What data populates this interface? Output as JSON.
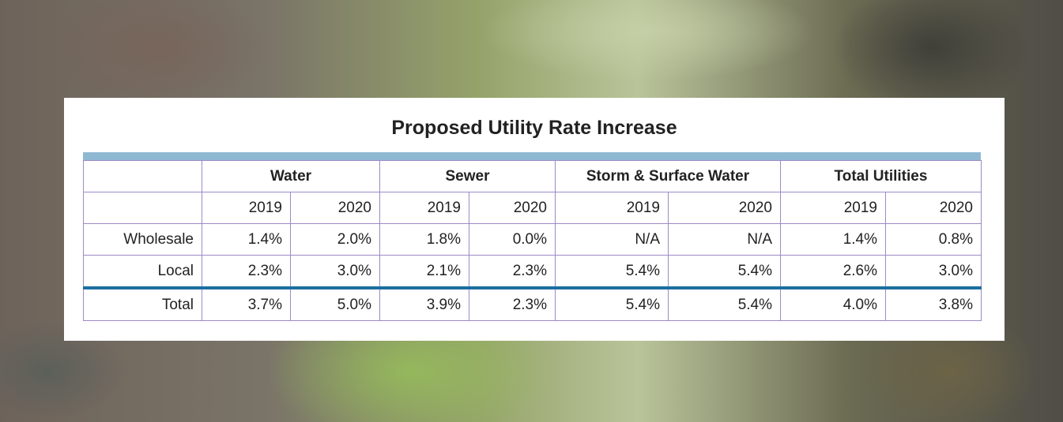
{
  "title": "Proposed Utility Rate Increase",
  "table": {
    "groups": [
      "Water",
      "Sewer",
      "Storm & Surface Water",
      "Total Utilities"
    ],
    "years": [
      "2019",
      "2020",
      "2019",
      "2020",
      "2019",
      "2020",
      "2019",
      "2020"
    ],
    "rows": [
      {
        "label": "Wholesale",
        "cells": [
          "1.4%",
          "2.0%",
          "1.8%",
          "0.0%",
          "N/A",
          "N/A",
          "1.4%",
          "0.8%"
        ]
      },
      {
        "label": "Local",
        "cells": [
          "2.3%",
          "3.0%",
          "2.1%",
          "2.3%",
          "5.4%",
          "5.4%",
          "2.6%",
          "3.0%"
        ]
      },
      {
        "label": "Total",
        "cells": [
          "3.7%",
          "5.0%",
          "3.9%",
          "2.3%",
          "5.4%",
          "5.4%",
          "4.0%",
          "3.8%"
        ]
      }
    ]
  }
}
